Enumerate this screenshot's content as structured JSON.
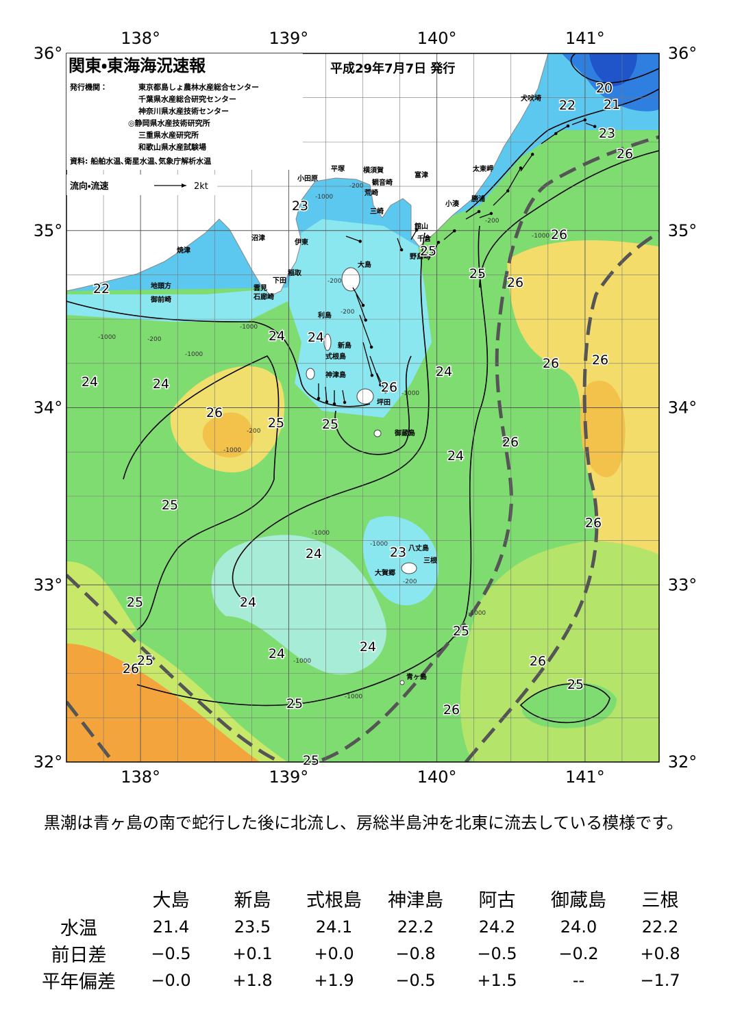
{
  "map": {
    "title": "関東・東海海況速報",
    "date": "平成29年7月7日 発行",
    "issuer_label": "発行機関：",
    "issuers": [
      "東京都島しょ農林水産総合センター",
      "千葉県水産総合研究センター",
      "神奈川県水産技術センター",
      "◎静岡県水産技術研究所",
      "三重県水産研究所",
      "和歌山県水産試験場"
    ],
    "sources": "資料: 船舶水温､衛星水温､気象庁解析水温",
    "legend": {
      "label": "流向・流速",
      "scale": "2kt"
    },
    "lon_ticks": [
      {
        "value": 138,
        "label": "138°"
      },
      {
        "value": 139,
        "label": "139°"
      },
      {
        "value": 140,
        "label": "140°"
      },
      {
        "value": 141,
        "label": "141°"
      }
    ],
    "lat_ticks": [
      {
        "value": 36,
        "label": "36°"
      },
      {
        "value": 35,
        "label": "35°"
      },
      {
        "value": 34,
        "label": "34°"
      },
      {
        "value": 33,
        "label": "33°"
      },
      {
        "value": 32,
        "label": "32°"
      }
    ],
    "places": [
      "犬吠埼",
      "太東岬",
      "勝浦",
      "小湊",
      "館山",
      "千倉",
      "野島崎",
      "富津",
      "横須賀",
      "観音崎",
      "荒崎",
      "三崎",
      "平塚",
      "小田原",
      "沼津",
      "伊東",
      "稲取",
      "下田",
      "雲見",
      "石廊崎",
      "焼津",
      "地頭方",
      "御前崎",
      "大島",
      "利島",
      "新島",
      "式根島",
      "神津島",
      "坪田",
      "御蔵島",
      "八丈島",
      "三根",
      "大賀郷",
      "青ヶ島"
    ],
    "isotherm_labels": [
      20,
      21,
      22,
      23,
      26,
      23,
      26,
      25,
      25,
      26,
      22,
      24,
      24,
      26,
      26,
      24,
      24,
      26,
      24,
      26,
      25,
      25,
      26,
      24,
      25,
      26,
      24,
      23,
      25,
      24,
      25,
      24,
      24,
      26,
      25,
      26,
      25,
      25,
      26,
      25
    ],
    "depth_labels": [
      "-200",
      "-1000",
      "-200",
      "-200",
      "-1000",
      "-200",
      "-1000",
      "-1000",
      "-200",
      "-1000",
      "-1000",
      "-1000",
      "-200",
      "-1000",
      "-1000",
      "-1000",
      "-1000",
      "-200",
      "-1000"
    ]
  },
  "summary": "黒潮は青ヶ島の南で蛇行した後に北流し、房総半島沖を北東に流去している模様です。",
  "table": {
    "columns": [
      "大島",
      "新島",
      "式根島",
      "神津島",
      "阿古",
      "御蔵島",
      "三根"
    ],
    "rows": [
      {
        "label": "水温",
        "cells": [
          "21.4",
          "23.5",
          "24.1",
          "22.2",
          "24.2",
          "24.0",
          "22.2"
        ]
      },
      {
        "label": "前日差",
        "cells": [
          "−0.5",
          "+0.1",
          "+0.0",
          "−0.8",
          "−0.5",
          "−0.2",
          "+0.8"
        ]
      },
      {
        "label": "平年偏差",
        "cells": [
          "−0.0",
          "+1.8",
          "+1.9",
          "−0.5",
          "+1.5",
          "--",
          "−1.7"
        ]
      }
    ]
  }
}
